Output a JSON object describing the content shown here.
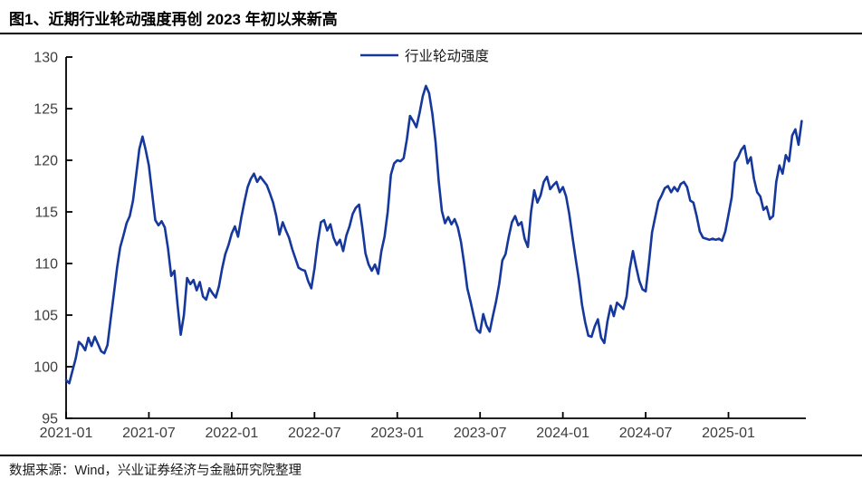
{
  "header": {
    "title": "图1、近期行业轮动强度再创 2023 年初以来新高"
  },
  "footer": {
    "source": "数据来源：Wind，兴业证券经济与金融研究院整理"
  },
  "chart_data": {
    "type": "line",
    "title": "图1、近期行业轮动强度再创 2023 年初以来新高",
    "legend": {
      "label": "行业轮动强度",
      "position": "top-center"
    },
    "grid": false,
    "ylim": [
      95,
      130
    ],
    "y_ticks": [
      95,
      100,
      105,
      110,
      115,
      120,
      125,
      130
    ],
    "x_ticks": [
      "2021-01",
      "2021-07",
      "2022-01",
      "2022-07",
      "2023-01",
      "2023-07",
      "2024-01",
      "2024-07",
      "2025-01"
    ],
    "axis_color": "#000000",
    "tick_label_color": "#3d3d3d",
    "series": [
      {
        "name": "行业轮动强度",
        "color": "#16389C",
        "start_date": "2021-01-01",
        "frequency": "weekly",
        "values": [
          98.7,
          98.4,
          99.6,
          100.8,
          102.4,
          102.1,
          101.6,
          102.8,
          102.0,
          102.9,
          102.2,
          101.5,
          101.3,
          102.1,
          104.6,
          107.1,
          109.6,
          111.6,
          112.7,
          113.9,
          114.6,
          116.1,
          118.6,
          121.1,
          122.3,
          121.0,
          119.5,
          116.8,
          114.2,
          113.7,
          114.1,
          113.5,
          111.5,
          108.8,
          109.3,
          106.0,
          103.1,
          105.0,
          108.6,
          108.0,
          108.4,
          107.4,
          108.2,
          106.8,
          106.5,
          107.6,
          107.1,
          106.7,
          107.8,
          109.5,
          110.9,
          111.8,
          112.9,
          113.6,
          112.6,
          114.4,
          116.0,
          117.4,
          118.2,
          118.7,
          117.9,
          118.4,
          118.0,
          117.6,
          116.8,
          115.9,
          114.6,
          112.8,
          114.0,
          113.2,
          112.5,
          111.4,
          110.5,
          109.6,
          109.4,
          109.3,
          108.3,
          107.6,
          109.5,
          112.0,
          114.0,
          114.2,
          113.2,
          113.8,
          112.5,
          111.8,
          112.3,
          111.2,
          112.7,
          113.6,
          114.8,
          115.4,
          115.7,
          113.5,
          111.0,
          109.9,
          109.3,
          109.9,
          109.0,
          111.2,
          112.6,
          115.0,
          118.6,
          119.7,
          120.0,
          119.9,
          120.2,
          122.0,
          124.3,
          123.8,
          123.2,
          124.6,
          126.2,
          127.2,
          126.5,
          124.5,
          121.8,
          118.0,
          115.1,
          113.9,
          114.5,
          113.8,
          114.3,
          113.5,
          112.1,
          110.0,
          107.6,
          106.3,
          104.9,
          103.6,
          103.3,
          105.1,
          104.0,
          103.4,
          104.9,
          106.3,
          108.0,
          110.3,
          110.9,
          112.6,
          114.0,
          114.6,
          113.7,
          114.0,
          112.4,
          111.6,
          115.0,
          117.1,
          115.9,
          116.6,
          117.9,
          118.4,
          117.2,
          117.6,
          117.9,
          116.9,
          117.4,
          116.5,
          114.8,
          112.6,
          110.5,
          108.5,
          106.0,
          104.3,
          103.0,
          102.9,
          103.9,
          104.6,
          102.8,
          102.3,
          104.4,
          105.9,
          104.9,
          106.2,
          105.9,
          105.6,
          106.8,
          109.5,
          111.2,
          109.7,
          108.3,
          107.5,
          107.3,
          110.0,
          113.0,
          114.5,
          116.0,
          116.6,
          117.3,
          117.5,
          116.9,
          117.4,
          117.0,
          117.7,
          117.9,
          117.4,
          116.1,
          115.9,
          114.6,
          113.1,
          112.5,
          112.4,
          112.3,
          112.4,
          112.3,
          112.4,
          112.2,
          113.1,
          114.7,
          116.4,
          119.8,
          120.3,
          121.0,
          121.4,
          119.7,
          120.3,
          118.2,
          116.9,
          116.5,
          115.2,
          115.5,
          114.3,
          114.6,
          117.9,
          119.5,
          118.7,
          120.5,
          119.9,
          122.4,
          123.0,
          121.5,
          123.8
        ]
      }
    ]
  }
}
